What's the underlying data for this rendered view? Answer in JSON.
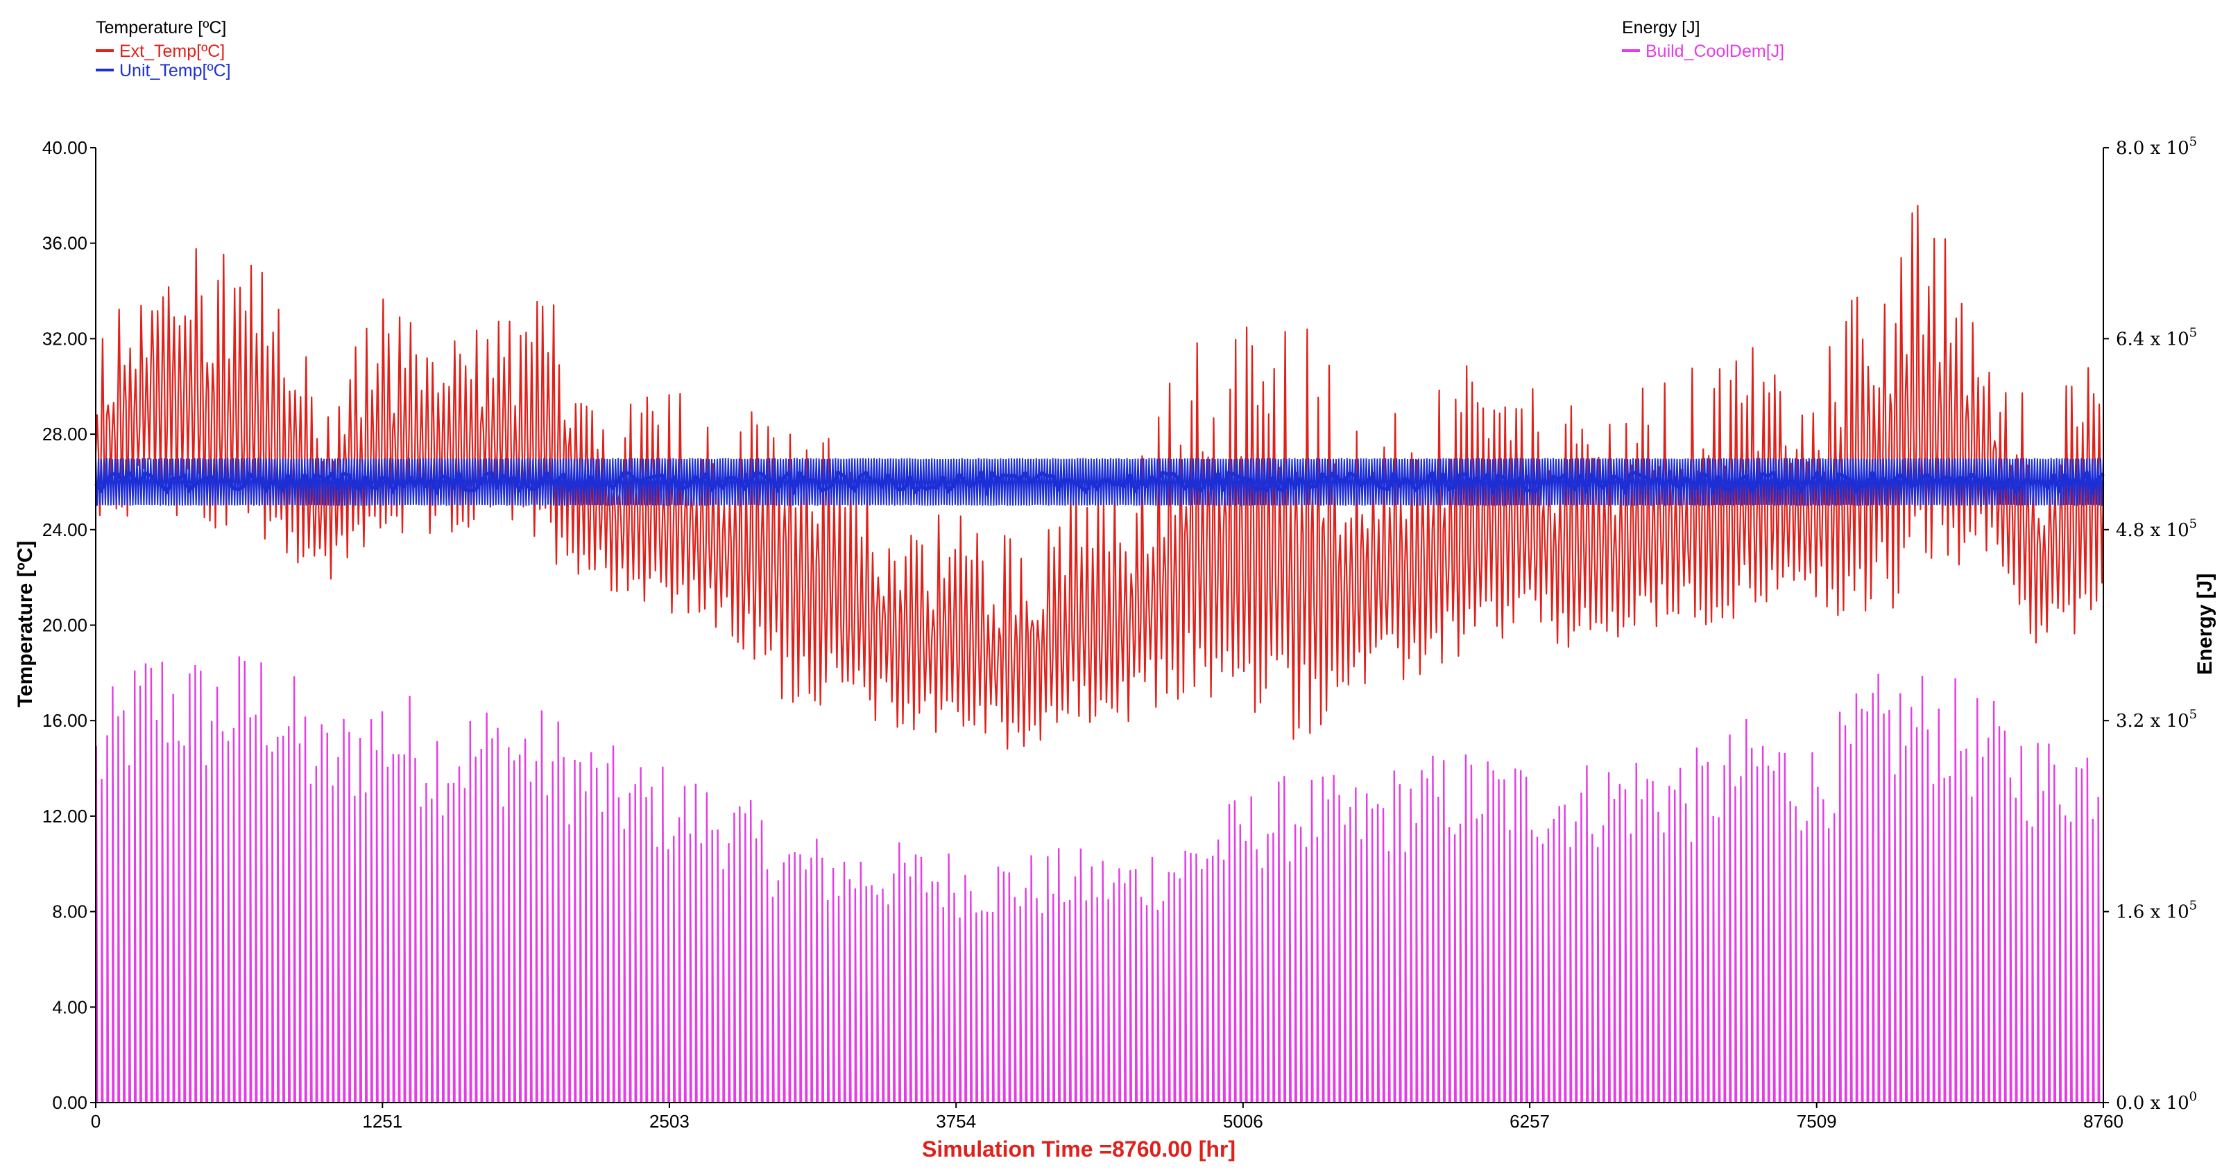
{
  "legend_left": {
    "header": "Temperature [ºC]",
    "entries": [
      {
        "label": "Ext_Temp[ºC]",
        "color": "#e0201a"
      },
      {
        "label": "Unit_Temp[ºC]",
        "color": "#1c2fd6"
      }
    ]
  },
  "legend_right": {
    "header": "Energy [J]",
    "entries": [
      {
        "label": "Build_CoolDem[J]",
        "color": "#e63be6"
      }
    ]
  },
  "chart_data": {
    "type": "line",
    "xlabel": "Simulation Time =8760.00 [hr]",
    "ylabel_left": "Temperature [ºC]",
    "ylabel_right": "Energy [J]",
    "xlim": [
      0,
      8760
    ],
    "ylim_left": [
      0,
      40
    ],
    "ylim_right": [
      0,
      800000
    ],
    "x_ticks": [
      0,
      1251,
      2503,
      3754,
      5006,
      6257,
      7509,
      8760
    ],
    "x_tick_labels": [
      "0",
      "1251",
      "2503",
      "3754",
      "5006",
      "6257",
      "7509",
      "8760"
    ],
    "y_ticks_left": [
      0,
      4,
      8,
      12,
      16,
      20,
      24,
      28,
      32,
      36,
      40
    ],
    "y_tick_labels_left": [
      "0.00",
      "4.00",
      "8.00",
      "12.00",
      "16.00",
      "20.00",
      "24.00",
      "28.00",
      "32.00",
      "36.00",
      "40.00"
    ],
    "y_ticks_right": [
      0,
      160000,
      320000,
      480000,
      640000,
      800000
    ],
    "y_tick_labels_right": [
      {
        "mantissa": "0.0",
        "exp": "0"
      },
      {
        "mantissa": "1.6",
        "exp": "5"
      },
      {
        "mantissa": "3.2",
        "exp": "5"
      },
      {
        "mantissa": "4.8",
        "exp": "5"
      },
      {
        "mantissa": "6.4",
        "exp": "5"
      },
      {
        "mantissa": "8.0",
        "exp": "5"
      }
    ],
    "series": [
      {
        "name": "Ext_Temp[ºC]",
        "axis": "left",
        "color": "#e0201a",
        "x": [
          0,
          250,
          500,
          750,
          1000,
          1250,
          1500,
          1750,
          2000,
          2250,
          2500,
          2750,
          3000,
          3250,
          3500,
          3750,
          4000,
          4250,
          4500,
          4750,
          5000,
          5250,
          5500,
          5750,
          6000,
          6250,
          6500,
          6750,
          7000,
          7250,
          7500,
          7750,
          8000,
          8250,
          8500,
          8760
        ],
        "min": [
          24,
          24,
          23,
          23,
          21,
          23,
          23,
          24,
          22,
          21,
          20,
          19,
          16,
          16,
          15,
          15,
          14,
          15,
          15,
          16,
          15,
          14,
          16,
          17,
          18,
          19,
          18,
          19,
          19,
          20,
          20,
          19,
          21,
          22,
          18,
          20
        ],
        "max": [
          32,
          37,
          36,
          35,
          30,
          34,
          32,
          33,
          34,
          29,
          31,
          28,
          31,
          27,
          25,
          25,
          24,
          26,
          26,
          32,
          33,
          34,
          29,
          29,
          31,
          30,
          29,
          30,
          31,
          32,
          30,
          37,
          38,
          33,
          29,
          32
        ]
      },
      {
        "name": "Unit_Temp[ºC]",
        "axis": "left",
        "color": "#1c2fd6",
        "band_low": 25.0,
        "band_high": 27.0,
        "mean": 26.0
      },
      {
        "name": "Build_CoolDem[J]",
        "axis": "right",
        "color": "#e63be6",
        "x": [
          0,
          250,
          500,
          750,
          1000,
          1250,
          1500,
          1750,
          2000,
          2250,
          2500,
          2750,
          3000,
          3250,
          3500,
          3750,
          4000,
          4250,
          4500,
          4750,
          5000,
          5250,
          5500,
          5750,
          6000,
          6250,
          6500,
          6750,
          7000,
          7250,
          7500,
          7750,
          8000,
          8250,
          8500,
          8760
        ],
        "max": [
          330000,
          395000,
          375000,
          390000,
          325000,
          358000,
          333000,
          343000,
          330000,
          300000,
          285000,
          270000,
          232000,
          222000,
          220000,
          215000,
          210000,
          215000,
          212000,
          230000,
          262000,
          280000,
          272000,
          292000,
          300000,
          292000,
          290000,
          302000,
          298000,
          330000,
          305000,
          360000,
          368000,
          342000,
          312000,
          322000
        ]
      }
    ]
  }
}
